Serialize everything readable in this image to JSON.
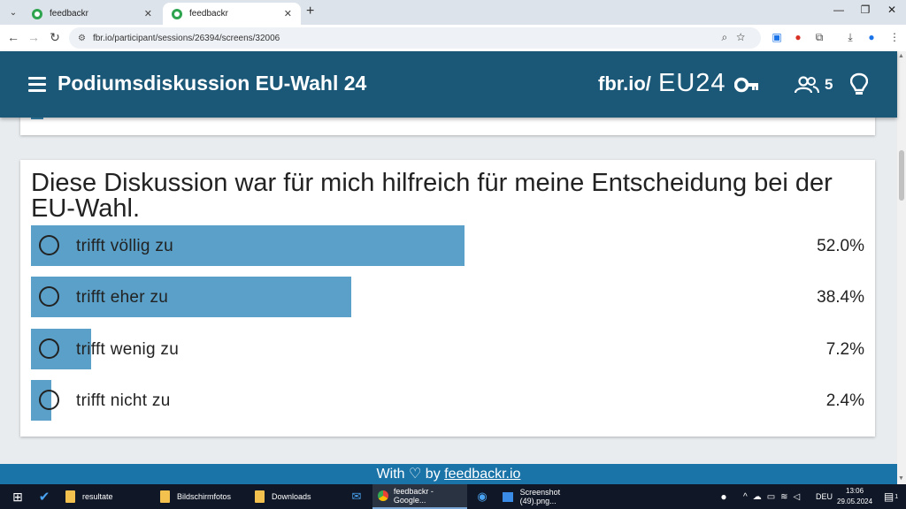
{
  "browser": {
    "tabs": [
      {
        "title": "feedbackr",
        "active": false
      },
      {
        "title": "feedbackr",
        "active": true
      }
    ],
    "url": "fbr.io/participant/sessions/26394/screens/32006"
  },
  "header": {
    "title": "Podiumsdiskussion EU-Wahl 24",
    "link_prefix": "fbr.io/",
    "session_code": "EU24",
    "participant_count": "5"
  },
  "question": {
    "text": "Diese Diskussion war für mich hilfreich für meine Entscheidung bei der EU-Wahl.",
    "options": [
      {
        "label": "trifft völlig zu",
        "percent_text": "52.0%",
        "percent": 52.0
      },
      {
        "label": "trifft eher zu",
        "percent_text": "38.4%",
        "percent": 38.4
      },
      {
        "label": "trifft wenig zu",
        "percent_text": "7.2%",
        "percent": 7.2
      },
      {
        "label": "trifft nicht zu",
        "percent_text": "2.4%",
        "percent": 2.4
      }
    ]
  },
  "footer": {
    "prefix": "With",
    "heart": "♡",
    "by": "by",
    "link": "feedbackr.io"
  },
  "taskbar": {
    "items": [
      {
        "label": "resultate"
      },
      {
        "label": "Bildschirmfotos"
      },
      {
        "label": "Downloads"
      },
      {
        "label": "feedbackr - Google..."
      },
      {
        "label": "Screenshot (49).png..."
      }
    ],
    "language": "DEU",
    "time": "13:06",
    "date": "29.05.2024",
    "notification_count": "1"
  },
  "colors": {
    "header_bg": "#1b5777",
    "bar_fill": "#5aa0c8",
    "footer_bg": "#1b74a8"
  }
}
